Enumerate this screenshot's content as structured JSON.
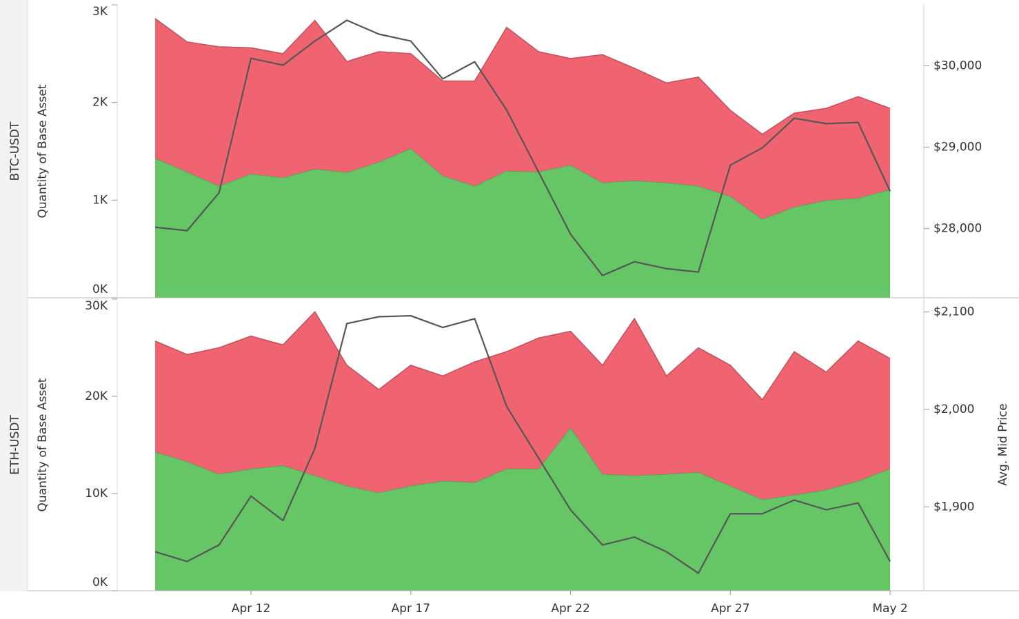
{
  "chart_data": [
    {
      "type": "stacked-area",
      "panel_label": "BTC-USDT",
      "ylabel": "Quantity of Base Asset",
      "x": [
        "Apr 9",
        "Apr 10",
        "Apr 11",
        "Apr 12",
        "Apr 13",
        "Apr 14",
        "Apr 15",
        "Apr 16",
        "Apr 17",
        "Apr 18",
        "Apr 19",
        "Apr 20",
        "Apr 21",
        "Apr 22",
        "Apr 23",
        "Apr 24",
        "Apr 25",
        "Apr 26",
        "Apr 27",
        "Apr 28",
        "Apr 29",
        "Apr 30",
        "May 1",
        "May 2"
      ],
      "series": [
        {
          "color": "#66c666",
          "values": [
            1430,
            1290,
            1145,
            1270,
            1230,
            1320,
            1285,
            1390,
            1530,
            1250,
            1145,
            1300,
            1290,
            1360,
            1180,
            1200,
            1180,
            1145,
            1040,
            805,
            930,
            1000,
            1020,
            1110
          ]
        },
        {
          "color": "#f06472",
          "values": [
            1430,
            1330,
            1425,
            1290,
            1270,
            1520,
            1135,
            1130,
            970,
            970,
            1075,
            1470,
            1230,
            1090,
            1310,
            1150,
            1020,
            1115,
            880,
            870,
            960,
            940,
            1040,
            830
          ]
        },
        {
          "color": "#555555",
          "axis": "y2",
          "values": [
            28017,
            27975,
            28440,
            30093,
            30008,
            30305,
            30560,
            30390,
            30305,
            29840,
            30050,
            29458,
            28695,
            27932,
            27424,
            27593,
            27508,
            27466,
            28780,
            28992,
            29356,
            29290,
            29305,
            28458
          ]
        }
      ],
      "ylim": [
        0,
        3000
      ],
      "yticks": [
        {
          "value": 0,
          "label": "0K"
        },
        {
          "value": 1000,
          "label": "1K"
        },
        {
          "value": 2000,
          "label": "2K"
        },
        {
          "value": 3000,
          "label": "3K"
        }
      ],
      "y2lim": [
        27150,
        30750
      ],
      "y2ticks": [
        {
          "value": 28000,
          "label": "$28,000"
        },
        {
          "value": 29000,
          "label": "$29,000"
        },
        {
          "value": 30000,
          "label": "$30,000"
        }
      ]
    },
    {
      "type": "stacked-area",
      "panel_label": "ETH-USDT",
      "ylabel": "Quantity of Base Asset",
      "y2label": "Avg. Mid Price",
      "x": [
        "Apr 9",
        "Apr 10",
        "Apr 11",
        "Apr 12",
        "Apr 13",
        "Apr 14",
        "Apr 15",
        "Apr 16",
        "Apr 17",
        "Apr 18",
        "Apr 19",
        "Apr 20",
        "Apr 21",
        "Apr 22",
        "Apr 23",
        "Apr 24",
        "Apr 25",
        "Apr 26",
        "Apr 27",
        "Apr 28",
        "Apr 29",
        "Apr 30",
        "May 1",
        "May 2"
      ],
      "series": [
        {
          "color": "#66c666",
          "values": [
            14300,
            13300,
            12000,
            12550,
            12900,
            11850,
            10800,
            10100,
            10800,
            11300,
            11150,
            12550,
            12550,
            16800,
            12000,
            11850,
            12000,
            12200,
            10800,
            9400,
            9850,
            10400,
            11300,
            12550
          ]
        },
        {
          "color": "#f06472",
          "values": [
            11400,
            11000,
            13000,
            13650,
            12400,
            16850,
            12400,
            10600,
            12400,
            10800,
            12400,
            12050,
            13450,
            9900,
            11200,
            16150,
            10100,
            12800,
            12400,
            10250,
            14750,
            12100,
            14400,
            11350
          ]
        },
        {
          "color": "#555555",
          "axis": "y2",
          "values": [
            1854,
            1844,
            1861,
            1911,
            1886,
            1960,
            2088,
            2095,
            2096,
            2084,
            2093,
            2003,
            1950,
            1897,
            1861,
            1869,
            1854,
            1832,
            1893,
            1893,
            1907,
            1897,
            1904,
            1844
          ]
        }
      ],
      "ylim": [
        0,
        30000
      ],
      "yticks": [
        {
          "value": 0,
          "label": "0K"
        },
        {
          "value": 10000,
          "label": "10K"
        },
        {
          "value": 20000,
          "label": "20K"
        },
        {
          "value": 30000,
          "label": "30K"
        }
      ],
      "y2lim": [
        1814,
        2113
      ],
      "y2ticks": [
        {
          "value": 1900,
          "label": "$1,900"
        },
        {
          "value": 2000,
          "label": "$2,000"
        },
        {
          "value": 2100,
          "label": "$2,100"
        }
      ],
      "xticks": [
        "Apr 12",
        "Apr 17",
        "Apr 22",
        "Apr 27",
        "May 2"
      ]
    }
  ]
}
